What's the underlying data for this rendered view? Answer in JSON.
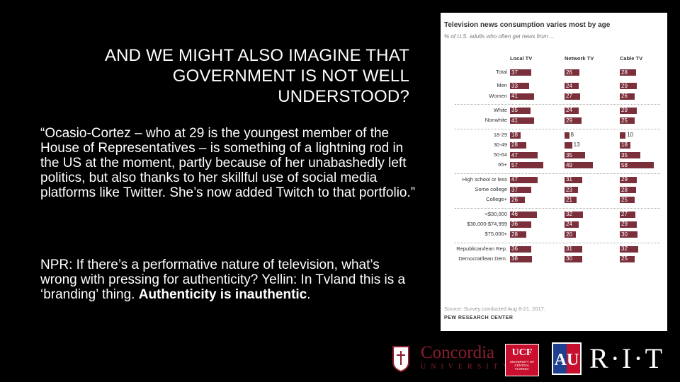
{
  "slide": {
    "title": "AND WE MIGHT ALSO IMAGINE THAT GOVERNMENT IS NOT WELL UNDERSTOOD?",
    "quote": "“Ocasio-Cortez – who at 29 is the youngest member of the House of Representatives – is something of a lightning rod in the US at the moment, partly because of her unabashedly left politics, but also thanks to her skillful use of social media platforms like Twitter. She’s now added Twitch to that portfolio.”",
    "npr_text": "NPR: If there’s a performative nature of television, what’s wrong with pressing for authenticity?  Yellin: In Tvland this is a ‘branding’ thing. ",
    "npr_bold": "Authenticity is inauthentic",
    "npr_end": "."
  },
  "chart_data": {
    "type": "bar",
    "title": "Television news consumption varies most by age",
    "subtitle": "% of U.S. adults who often get news from ...",
    "columns": [
      "Local TV",
      "Network TV",
      "Cable TV"
    ],
    "categories": [
      "Total",
      "Men",
      "Women",
      "White",
      "Nonwhite",
      "18-29",
      "30-49",
      "50-64",
      "65+",
      "High school or less",
      "Some college",
      "College+",
      "<$30,000",
      "$30,000-$74,999",
      "$75,000+",
      "Republican/lean Rep.",
      "Democrat/lean Dem."
    ],
    "series": [
      {
        "name": "Local TV",
        "values": [
          37,
          33,
          41,
          35,
          41,
          18,
          28,
          47,
          57,
          47,
          37,
          26,
          46,
          36,
          28,
          36,
          38
        ]
      },
      {
        "name": "Network TV",
        "values": [
          26,
          24,
          27,
          24,
          29,
          8,
          13,
          35,
          49,
          31,
          23,
          21,
          32,
          24,
          20,
          31,
          30
        ]
      },
      {
        "name": "Cable TV",
        "values": [
          28,
          29,
          26,
          29,
          25,
          10,
          18,
          35,
          58,
          29,
          28,
          25,
          27,
          29,
          30,
          32,
          25
        ]
      }
    ],
    "source": "Source: Survey conducted Aug 8-21, 2017.",
    "brand": "PEW RESEARCH CENTER"
  },
  "logos": {
    "concordia_name": "Concordia",
    "concordia_sub": "UNIVERSITY",
    "ucf_name": "UCF",
    "ucf_sub": "UNIVERSITY OF CENTRAL FLORIDA",
    "au_mark": "AU",
    "rit": "R·I·T"
  },
  "colors": {
    "bar": "#7a2f3b",
    "background": "#000000",
    "concordia": "#8b1d2c",
    "ucf": "#c8102e"
  }
}
